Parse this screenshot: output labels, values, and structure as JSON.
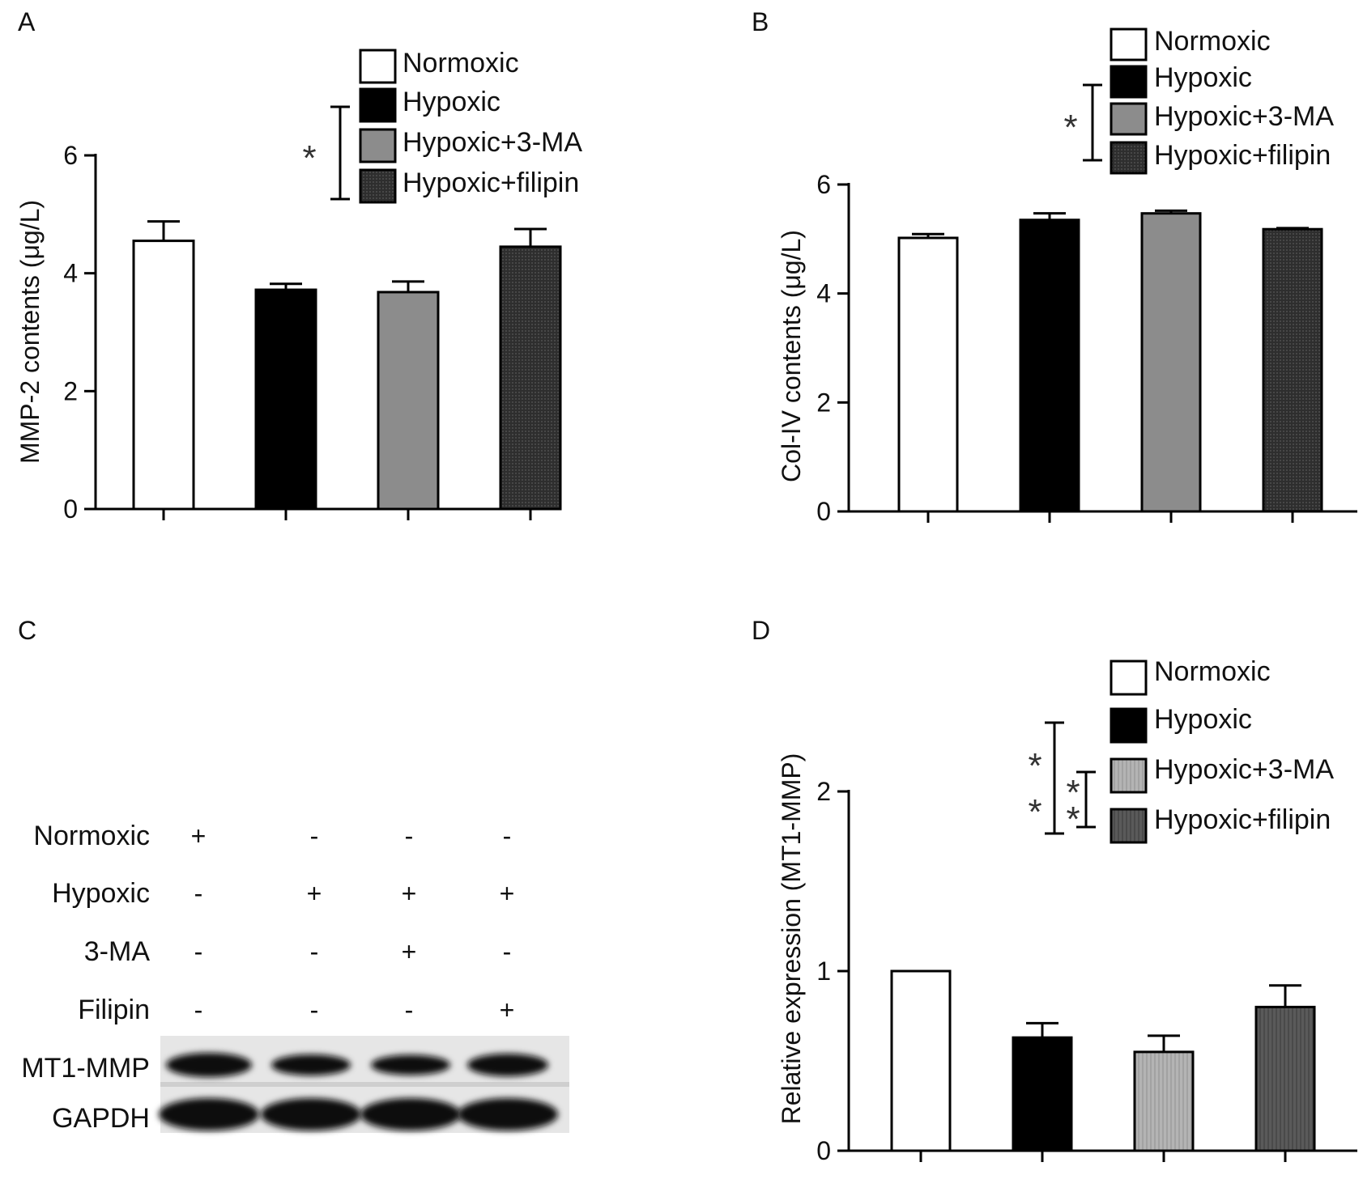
{
  "colors": {
    "normoxic": "#ffffff",
    "hypoxic": "#000000",
    "three_ma_bd": "#8c8c8c",
    "filipin_bd": "#2e2e2e",
    "three_ma_d": "#b4b4b4",
    "filipin_d": "#5a5a5a",
    "axis": "#000000"
  },
  "chart_data": [
    {
      "panel": "A",
      "type": "bar",
      "ylabel": "MMP-2 contents (μg/L)",
      "ylim": [
        0,
        6
      ],
      "yticks": [
        0,
        2,
        4,
        6
      ],
      "series": [
        {
          "name": "Normoxic",
          "value": 4.55,
          "error": 0.33
        },
        {
          "name": "Hypoxic",
          "value": 3.72,
          "error": 0.1
        },
        {
          "name": "Hypoxic+3-MA",
          "value": 3.68,
          "error": 0.18
        },
        {
          "name": "Hypoxic+filipin",
          "value": 4.45,
          "error": 0.3
        }
      ],
      "significance": [
        {
          "label": "*"
        }
      ],
      "legend_position": "top-right"
    },
    {
      "panel": "B",
      "type": "bar",
      "ylabel": "Col-IV contents (μg/L)",
      "ylim": [
        0,
        6
      ],
      "yticks": [
        0,
        2,
        4,
        6
      ],
      "series": [
        {
          "name": "Normoxic",
          "value": 5.02,
          "error": 0.07
        },
        {
          "name": "Hypoxic",
          "value": 5.35,
          "error": 0.12
        },
        {
          "name": "Hypoxic+3-MA",
          "value": 5.47,
          "error": 0.05
        },
        {
          "name": "Hypoxic+filipin",
          "value": 5.18,
          "error": 0.02
        }
      ],
      "significance": [
        {
          "label": "*"
        }
      ],
      "legend_position": "top-right"
    },
    {
      "panel": "D",
      "type": "bar",
      "ylabel": "Relative expression (MT1-MMP)",
      "ylim": [
        0,
        2.4
      ],
      "yticks": [
        0,
        1,
        2
      ],
      "series": [
        {
          "name": "Normoxic",
          "value": 1.0,
          "error": 0.0
        },
        {
          "name": "Hypoxic",
          "value": 0.63,
          "error": 0.08
        },
        {
          "name": "Hypoxic+3-MA",
          "value": 0.55,
          "error": 0.09
        },
        {
          "name": "Hypoxic+filipin",
          "value": 0.8,
          "error": 0.12
        }
      ],
      "significance": [
        {
          "label": "*"
        },
        {
          "label": "*"
        },
        {
          "label": "*"
        },
        {
          "label": "*"
        }
      ],
      "legend_position": "top-right"
    }
  ],
  "panel_c": {
    "letter": "C",
    "conditions": [
      {
        "label": "Normoxic",
        "signs": [
          "+",
          "-",
          "-",
          "-"
        ]
      },
      {
        "label": "Hypoxic",
        "signs": [
          "-",
          "+",
          "+",
          "+"
        ]
      },
      {
        "label": "3-MA",
        "signs": [
          "-",
          "-",
          "+",
          "-"
        ]
      },
      {
        "label": "Filipin",
        "signs": [
          "-",
          "-",
          "-",
          "+"
        ]
      }
    ],
    "blots": [
      {
        "label": "MT1-MMP"
      },
      {
        "label": "GAPDH"
      }
    ]
  },
  "panels": {
    "a": "A",
    "b": "B",
    "c": "C",
    "d": "D"
  }
}
